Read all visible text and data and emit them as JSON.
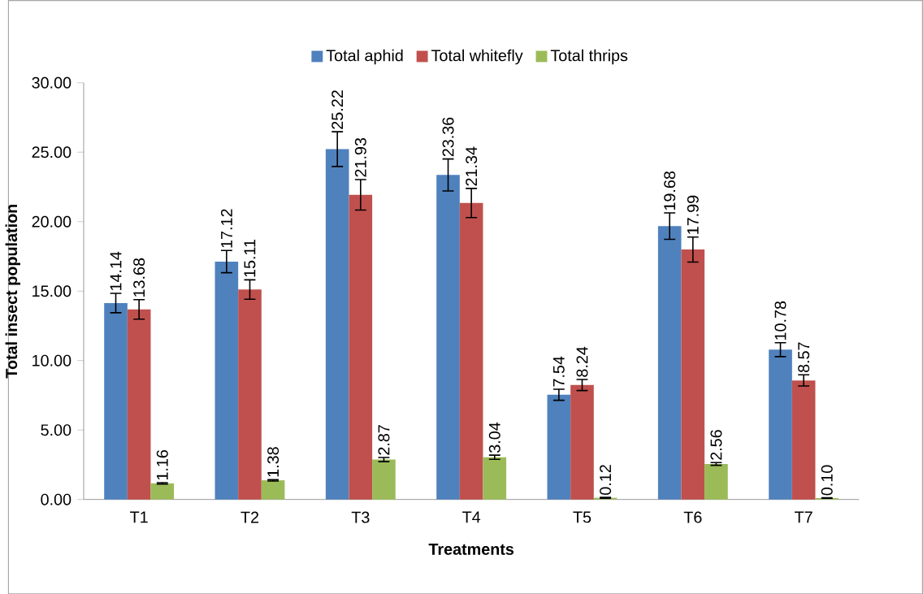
{
  "chart_data": {
    "type": "bar",
    "xlabel": "Treatments",
    "ylabel": "Total insect population",
    "categories": [
      "T1",
      "T2",
      "T3",
      "T4",
      "T5",
      "T6",
      "T7"
    ],
    "series": [
      {
        "name": "Total aphid",
        "color": "#4f81bd",
        "values": [
          14.14,
          17.12,
          25.22,
          23.36,
          7.54,
          19.68,
          10.78
        ],
        "errors": [
          0.7,
          0.8,
          1.25,
          1.15,
          0.4,
          0.95,
          0.5
        ],
        "value_labels": [
          "14.14",
          "17.12",
          "25.22",
          "23.36",
          "7.54",
          "19.68",
          "10.78"
        ]
      },
      {
        "name": "Total whitefly",
        "color": "#c0504d",
        "values": [
          13.68,
          15.11,
          21.93,
          21.34,
          8.24,
          17.99,
          8.57
        ],
        "errors": [
          0.7,
          0.7,
          1.1,
          1.05,
          0.4,
          0.9,
          0.4
        ],
        "value_labels": [
          "13.68",
          "15.11",
          "21.93",
          "21.34",
          "8.24",
          "17.99",
          "8.57"
        ]
      },
      {
        "name": "Total thrips",
        "color": "#9bbb59",
        "values": [
          1.16,
          1.38,
          2.87,
          3.04,
          0.12,
          2.56,
          0.1
        ],
        "errors": [
          0.05,
          0.05,
          0.15,
          0.15,
          0.03,
          0.1,
          0.02
        ],
        "value_labels": [
          "1.16",
          "1.38",
          "2.87",
          "3.04",
          "0.12",
          "2.56",
          "0.10"
        ]
      }
    ],
    "ylim": [
      0,
      30
    ],
    "yticks": [
      {
        "value": 0,
        "label": "0.00"
      },
      {
        "value": 5,
        "label": "5.00"
      },
      {
        "value": 10,
        "label": "10.00"
      },
      {
        "value": 15,
        "label": "15.00"
      },
      {
        "value": 20,
        "label": "20.00"
      },
      {
        "value": 25,
        "label": "25.00"
      },
      {
        "value": 30,
        "label": "30.00"
      }
    ],
    "legend": "top",
    "grid": false
  }
}
